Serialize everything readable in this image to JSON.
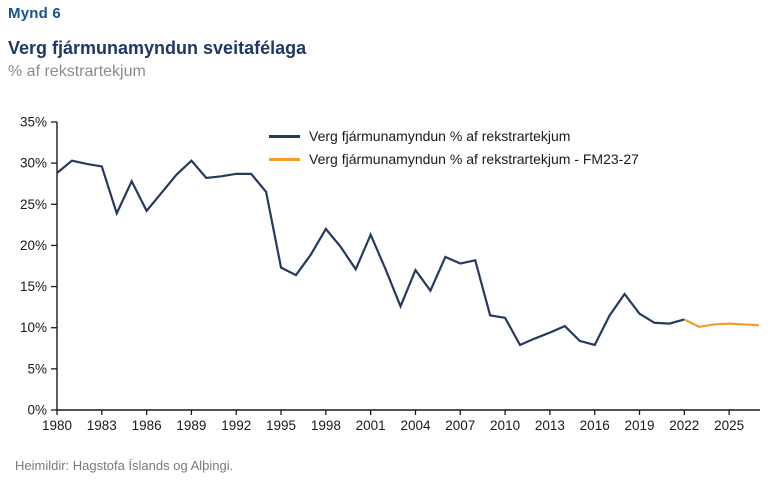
{
  "header": {
    "figure_label": "Mynd 6",
    "title": "Verg fjármunamyndun sveitafélaga",
    "subtitle": "% af rekstrartekjum"
  },
  "footer": {
    "source": "Heimildir: Hagstofa Íslands og Alþingi."
  },
  "colors": {
    "figure_label": "#16548c",
    "title": "#1f3864",
    "subtitle": "#8c8c8c",
    "axis": "#1a1a1a",
    "axis_text": "#1a1a1a",
    "legend_text": "#1a1a1a",
    "source": "#7a7a7a",
    "series_main": "#253a5e",
    "series_forecast": "#f49c2e"
  },
  "chart_data": {
    "type": "line",
    "title": "Verg fjármunamyndun sveitafélaga",
    "subtitle": "% af rekstrartekjum",
    "grid": false,
    "legend_position": "top-inside",
    "x_axis": {
      "min": 1980,
      "max": 2027,
      "tick_labels": [
        "1980",
        "1983",
        "1986",
        "1989",
        "1992",
        "1995",
        "1998",
        "2001",
        "2004",
        "2007",
        "2010",
        "2013",
        "2016",
        "2019",
        "2022",
        "2025"
      ]
    },
    "y_axis": {
      "min": 0,
      "max": 35,
      "unit": "%",
      "tick_labels": [
        "0%",
        "5%",
        "10%",
        "15%",
        "20%",
        "25%",
        "30%",
        "35%"
      ]
    },
    "series": [
      {
        "name": "Verg fjármunamyndun % af rekstrartekjum",
        "color": "#253a5e",
        "x": [
          1980,
          1981,
          1982,
          1983,
          1984,
          1985,
          1986,
          1987,
          1988,
          1989,
          1990,
          1991,
          1992,
          1993,
          1994,
          1995,
          1996,
          1997,
          1998,
          1999,
          2000,
          2001,
          2002,
          2003,
          2004,
          2005,
          2006,
          2007,
          2008,
          2009,
          2010,
          2011,
          2012,
          2013,
          2014,
          2015,
          2016,
          2017,
          2018,
          2019,
          2020,
          2021,
          2022
        ],
        "values": [
          28.8,
          30.3,
          29.9,
          29.6,
          23.9,
          27.8,
          24.2,
          26.4,
          28.6,
          30.3,
          28.2,
          28.4,
          28.7,
          28.7,
          26.5,
          17.3,
          16.4,
          18.9,
          22.0,
          19.8,
          17.1,
          21.3,
          17.1,
          12.6,
          17.0,
          14.5,
          18.6,
          17.8,
          18.2,
          11.5,
          11.2,
          7.9,
          8.7,
          9.4,
          10.2,
          8.4,
          7.9,
          11.5,
          14.1,
          11.7,
          10.6,
          10.5,
          11.0
        ]
      },
      {
        "name": "Verg fjármunamyndun % af rekstrartekjum - FM23-27",
        "color": "#f49c2e",
        "x": [
          2022,
          2023,
          2024,
          2025,
          2026,
          2027
        ],
        "values": [
          11.0,
          10.1,
          10.4,
          10.5,
          10.4,
          10.3
        ]
      }
    ]
  }
}
